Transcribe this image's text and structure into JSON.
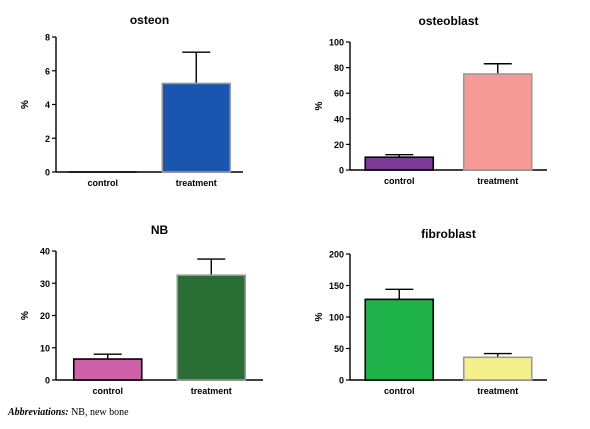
{
  "chart_data": [
    {
      "type": "bar",
      "title": "osteon",
      "ylabel": "%",
      "xlabel": "",
      "categories": [
        "control",
        "treatment"
      ],
      "values": [
        0,
        5.25
      ],
      "errors": [
        0,
        1.85
      ],
      "ylim": [
        0,
        8
      ],
      "yticks": [
        0,
        2,
        4,
        6,
        8
      ],
      "colors": [
        "#1a56b0",
        "#1a56b0"
      ],
      "edge_colors": [
        "#000000",
        "#9a9a9a"
      ]
    },
    {
      "type": "bar",
      "title": "osteoblast",
      "ylabel": "%",
      "xlabel": "",
      "categories": [
        "control",
        "treatment"
      ],
      "values": [
        10,
        75
      ],
      "errors": [
        2,
        8
      ],
      "ylim": [
        0,
        100
      ],
      "yticks": [
        0,
        20,
        40,
        60,
        80,
        100
      ],
      "colors": [
        "#7b3a96",
        "#f59a96"
      ],
      "edge_colors": [
        "#000000",
        "#9a9a9a"
      ]
    },
    {
      "type": "bar",
      "title": "NB",
      "ylabel": "%",
      "xlabel": "",
      "categories": [
        "control",
        "treatment"
      ],
      "values": [
        6.5,
        32.5
      ],
      "errors": [
        1.5,
        5
      ],
      "ylim": [
        0,
        40
      ],
      "yticks": [
        0,
        10,
        20,
        30,
        40
      ],
      "colors": [
        "#d060a8",
        "#2a6e35"
      ],
      "edge_colors": [
        "#000000",
        "#9a9a9a"
      ]
    },
    {
      "type": "bar",
      "title": "fibroblast",
      "ylabel": "%",
      "xlabel": "",
      "categories": [
        "control",
        "treatment"
      ],
      "values": [
        128,
        36
      ],
      "errors": [
        16,
        6
      ],
      "ylim": [
        0,
        200
      ],
      "yticks": [
        0,
        50,
        100,
        150,
        200
      ],
      "colors": [
        "#1fb14a",
        "#f4f08c"
      ],
      "edge_colors": [
        "#000000",
        "#9a9a9a"
      ]
    }
  ],
  "footnote": {
    "lead": "Abbreviations:",
    "text": " NB, new bone"
  }
}
